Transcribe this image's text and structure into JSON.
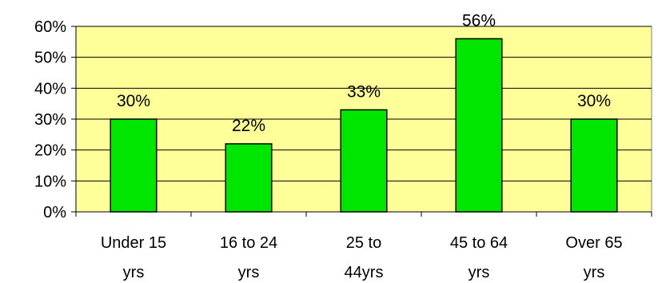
{
  "chart_data": {
    "type": "bar",
    "categories": [
      [
        "Under 15",
        "yrs"
      ],
      [
        "16 to 24",
        "yrs"
      ],
      [
        "25 to",
        "44yrs"
      ],
      [
        "45 to 64",
        "yrs"
      ],
      [
        "Over 65",
        "yrs"
      ]
    ],
    "values": [
      30,
      22,
      33,
      56,
      30
    ],
    "data_labels": [
      "30%",
      "22%",
      "33%",
      "56%",
      "30%"
    ],
    "y_ticks": [
      0,
      10,
      20,
      30,
      40,
      50,
      60
    ],
    "y_tick_labels": [
      "0%",
      "10%",
      "20%",
      "30%",
      "40%",
      "50%",
      "60%"
    ],
    "ylim": [
      0,
      60
    ],
    "title": "",
    "xlabel": "",
    "ylabel": "",
    "grid": true,
    "legend": "none",
    "colors": {
      "plot_background": "#ffff99",
      "bar_fill": "#00e600",
      "bar_stroke": "#000000",
      "gridline": "#000000"
    }
  }
}
